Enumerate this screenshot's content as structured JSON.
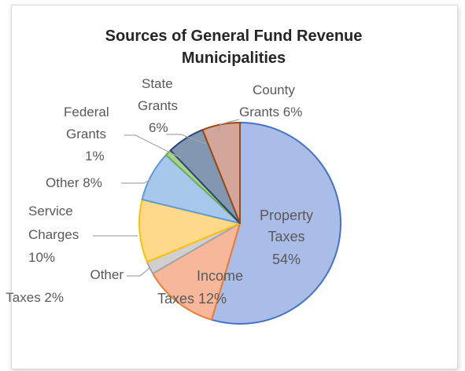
{
  "chart_data": {
    "type": "pie",
    "title": "Sources of General Fund Revenue",
    "subtitle": "Municipalities",
    "slices": [
      {
        "label": "Property Taxes",
        "value": 54,
        "text": "54%",
        "color": "#a9bde8",
        "edge": "#4472c4"
      },
      {
        "label": "Income Taxes",
        "value": 12,
        "text": "12%",
        "color": "#f7b79a",
        "edge": "#ed7d31"
      },
      {
        "label": "Other Taxes",
        "value": 2,
        "text": "2%",
        "color": "#d0d0d0",
        "edge": "#a5a5a5"
      },
      {
        "label": "Service Charges",
        "value": 10,
        "text": "10%",
        "color": "#ffd98a",
        "edge": "#ffc000"
      },
      {
        "label": "Other",
        "value": 8,
        "text": "8%",
        "color": "#a7c8ec",
        "edge": "#5b9bd5"
      },
      {
        "label": "Federal Grants",
        "value": 1,
        "text": "1%",
        "color": "#a9d18e",
        "edge": "#70ad47"
      },
      {
        "label": "State Grants",
        "value": 6,
        "text": "6%",
        "color": "#8497b0",
        "edge": "#264478"
      },
      {
        "label": "County Grants",
        "value": 6,
        "text": "6%",
        "color": "#d4a59a",
        "edge": "#9e480e"
      }
    ]
  }
}
